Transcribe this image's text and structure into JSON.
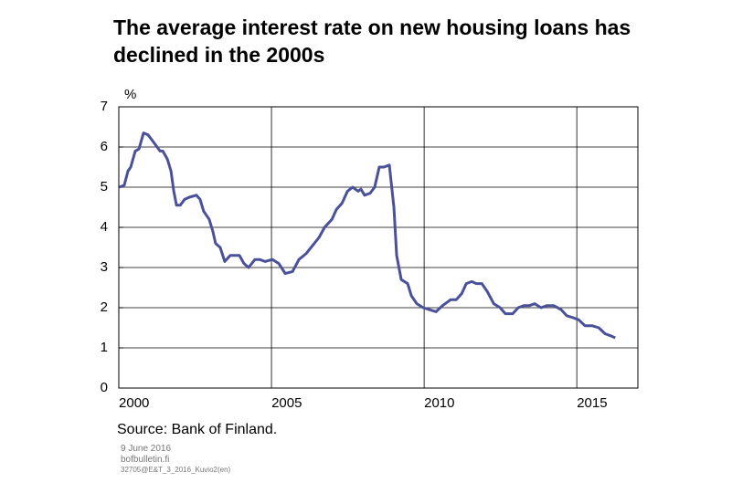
{
  "chart_data": {
    "type": "line",
    "title": "The average interest rate on new housing loans has declined in the 2000s",
    "y_label": "%",
    "source": "Source: Bank of Finland.",
    "footer": [
      "9 June 2016",
      "bofbulletin.fi",
      "32705@E&T_3_2016_Kuvio2(en)"
    ],
    "xlim": [
      2000,
      2017
    ],
    "xticks": [
      2000,
      2005,
      2010,
      2015
    ],
    "ylim": [
      0,
      7
    ],
    "yticks": [
      0,
      1,
      2,
      3,
      4,
      5,
      6,
      7
    ],
    "grid": true,
    "series": [
      {
        "name": "Average interest rate on new housing loans",
        "color": "#4a5199",
        "x": [
          2000.03,
          2000.18,
          2000.3,
          2000.39,
          2000.54,
          2000.66,
          2000.81,
          2000.96,
          2001.11,
          2001.35,
          2001.44,
          2001.59,
          2001.71,
          2001.8,
          2001.89,
          2002.01,
          2002.16,
          2002.31,
          2002.54,
          2002.66,
          2002.78,
          2002.96,
          2003.08,
          2003.17,
          2003.32,
          2003.47,
          2003.65,
          2003.83,
          2003.95,
          2004.1,
          2004.25,
          2004.46,
          2004.61,
          2004.79,
          2005.03,
          2005.24,
          2005.45,
          2005.69,
          2005.9,
          2006.14,
          2006.35,
          2006.56,
          2006.74,
          2006.98,
          2007.13,
          2007.31,
          2007.49,
          2007.66,
          2007.84,
          2007.93,
          2008.05,
          2008.23,
          2008.38,
          2008.53,
          2008.68,
          2008.86,
          2009.01,
          2009.1,
          2009.25,
          2009.46,
          2009.58,
          2009.76,
          2009.97,
          2010.18,
          2010.39,
          2010.6,
          2010.87,
          2011.05,
          2011.23,
          2011.38,
          2011.56,
          2011.71,
          2011.89,
          2012.07,
          2012.28,
          2012.49,
          2012.66,
          2012.9,
          2013.08,
          2013.26,
          2013.44,
          2013.62,
          2013.83,
          2014.01,
          2014.25,
          2014.49,
          2014.67,
          2014.88,
          2015.06,
          2015.27,
          2015.51,
          2015.72,
          2015.93,
          2016.11,
          2016.26
        ],
        "values": [
          5.0,
          5.05,
          5.4,
          5.5,
          5.9,
          5.95,
          6.35,
          6.3,
          6.15,
          5.9,
          5.9,
          5.7,
          5.4,
          4.9,
          4.55,
          4.55,
          4.7,
          4.75,
          4.8,
          4.7,
          4.4,
          4.2,
          3.9,
          3.6,
          3.5,
          3.15,
          3.3,
          3.3,
          3.3,
          3.1,
          3.0,
          3.2,
          3.2,
          3.15,
          3.2,
          3.1,
          2.85,
          2.9,
          3.2,
          3.35,
          3.55,
          3.75,
          4.0,
          4.2,
          4.45,
          4.6,
          4.9,
          5.0,
          4.9,
          4.95,
          4.8,
          4.85,
          5.0,
          5.5,
          5.5,
          5.55,
          4.5,
          3.3,
          2.7,
          2.6,
          2.3,
          2.1,
          2.0,
          1.95,
          1.9,
          2.05,
          2.2,
          2.2,
          2.35,
          2.6,
          2.65,
          2.6,
          2.6,
          2.4,
          2.1,
          2.0,
          1.85,
          1.85,
          2.0,
          2.05,
          2.05,
          2.1,
          2.0,
          2.05,
          2.05,
          1.95,
          1.8,
          1.75,
          1.7,
          1.55,
          1.55,
          1.5,
          1.35,
          1.3,
          1.25
        ]
      }
    ]
  }
}
